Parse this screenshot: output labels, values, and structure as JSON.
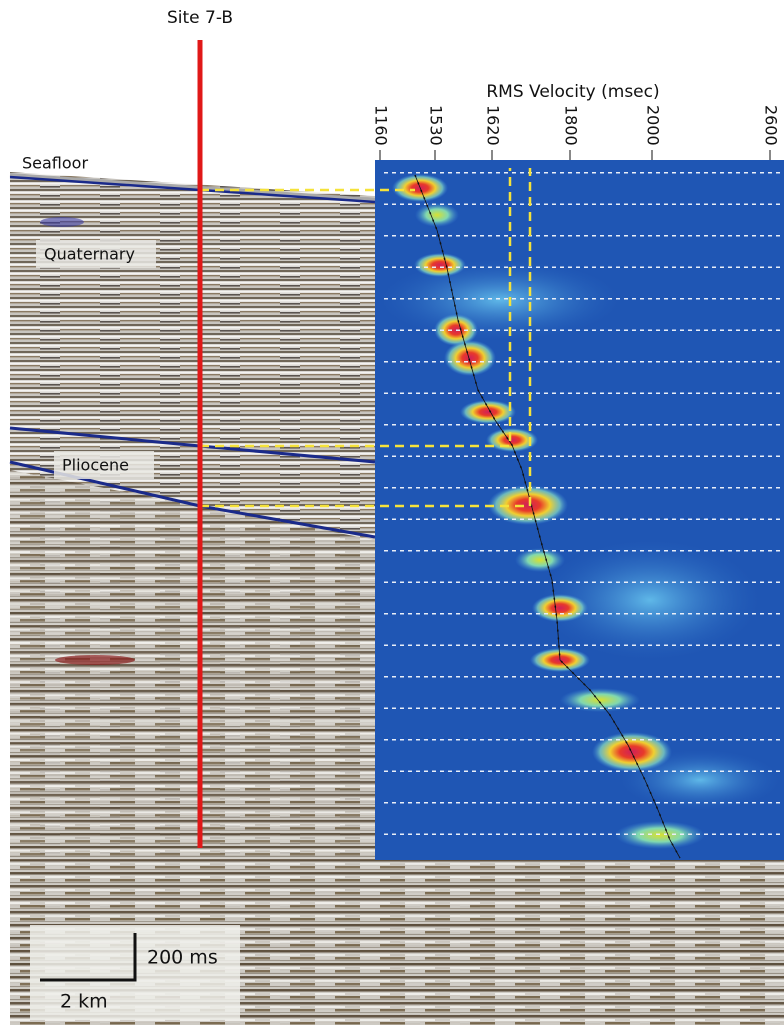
{
  "site_label": "Site 7-B",
  "horizons": {
    "seafloor": "Seafloor",
    "unit_1": "Quaternary",
    "unit_2": "Pliocene"
  },
  "velocity_panel": {
    "axis_label": "RMS Velocity (msec)",
    "ticks": [
      "1160",
      "1530",
      "1620",
      "1800",
      "2000",
      "2600"
    ]
  },
  "scale_bar": {
    "vertical": "200 ms",
    "horizontal": "2 km"
  }
}
